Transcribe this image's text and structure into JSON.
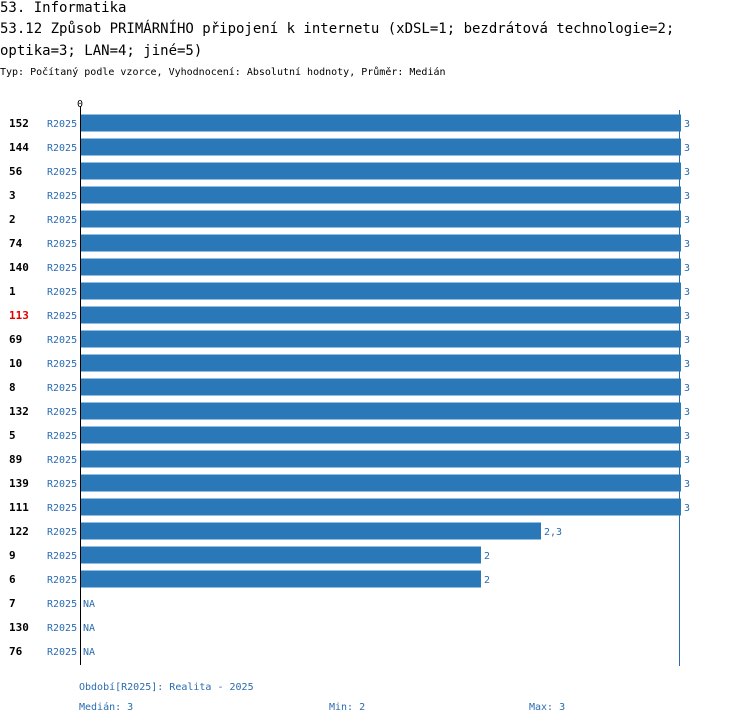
{
  "header": {
    "line1": "53. Informatika",
    "line2": "53.12 Způsob PRIMÁRNÍHO připojení k internetu (xDSL=1; bezdrátová technologie=2;",
    "line3": "optika=3; LAN=4; jiné=5)",
    "subtitle": "Typ: Počítaný podle vzorce, Vyhodnocení: Absolutní hodnoty, Průměr: Medián"
  },
  "colors": {
    "bar": "#2a78b8",
    "text_blue": "#2a6cb0",
    "highlight": "#e00000"
  },
  "chart_data": {
    "type": "bar",
    "orientation": "horizontal",
    "xlim": [
      0,
      3
    ],
    "tick_labels": [
      "0"
    ],
    "period_label": "R2025",
    "highlight_id": "113",
    "rows": [
      {
        "id": "152",
        "period": "R2025",
        "value": 3,
        "label": "3"
      },
      {
        "id": "144",
        "period": "R2025",
        "value": 3,
        "label": "3"
      },
      {
        "id": "56",
        "period": "R2025",
        "value": 3,
        "label": "3"
      },
      {
        "id": "3",
        "period": "R2025",
        "value": 3,
        "label": "3"
      },
      {
        "id": "2",
        "period": "R2025",
        "value": 3,
        "label": "3"
      },
      {
        "id": "74",
        "period": "R2025",
        "value": 3,
        "label": "3"
      },
      {
        "id": "140",
        "period": "R2025",
        "value": 3,
        "label": "3"
      },
      {
        "id": "1",
        "period": "R2025",
        "value": 3,
        "label": "3"
      },
      {
        "id": "113",
        "period": "R2025",
        "value": 3,
        "label": "3"
      },
      {
        "id": "69",
        "period": "R2025",
        "value": 3,
        "label": "3"
      },
      {
        "id": "10",
        "period": "R2025",
        "value": 3,
        "label": "3"
      },
      {
        "id": "8",
        "period": "R2025",
        "value": 3,
        "label": "3"
      },
      {
        "id": "132",
        "period": "R2025",
        "value": 3,
        "label": "3"
      },
      {
        "id": "5",
        "period": "R2025",
        "value": 3,
        "label": "3"
      },
      {
        "id": "89",
        "period": "R2025",
        "value": 3,
        "label": "3"
      },
      {
        "id": "139",
        "period": "R2025",
        "value": 3,
        "label": "3"
      },
      {
        "id": "111",
        "period": "R2025",
        "value": 3,
        "label": "3"
      },
      {
        "id": "122",
        "period": "R2025",
        "value": 2.3,
        "label": "2,3"
      },
      {
        "id": "9",
        "period": "R2025",
        "value": 2,
        "label": "2"
      },
      {
        "id": "6",
        "period": "R2025",
        "value": 2,
        "label": "2"
      },
      {
        "id": "7",
        "period": "R2025",
        "value": null,
        "label": "NA"
      },
      {
        "id": "130",
        "period": "R2025",
        "value": null,
        "label": "NA"
      },
      {
        "id": "76",
        "period": "R2025",
        "value": null,
        "label": "NA"
      }
    ]
  },
  "footer": {
    "period_note": "Období[R2025]: Realita - 2025",
    "median": "Medián: 3",
    "min": "Min: 2",
    "max": "Max: 3"
  }
}
